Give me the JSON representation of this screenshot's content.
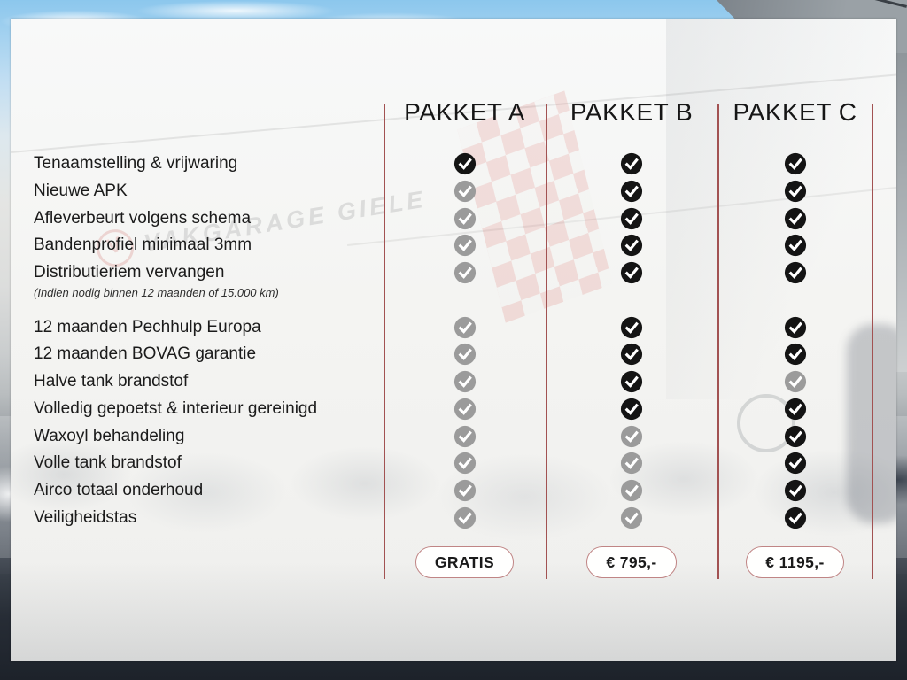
{
  "table": {
    "packages": [
      {
        "name": "PAKKET A",
        "price": "GRATIS"
      },
      {
        "name": "PAKKET B",
        "price": "€ 795,-"
      },
      {
        "name": "PAKKET C",
        "price": "€ 1195,-"
      }
    ],
    "feature_groups": [
      {
        "features": [
          {
            "label": "Tenaamstelling & vrijwaring",
            "included": [
              true,
              true,
              true
            ]
          },
          {
            "label": "Nieuwe APK",
            "included": [
              false,
              true,
              true
            ]
          },
          {
            "label": "Afleverbeurt volgens schema",
            "included": [
              false,
              true,
              true
            ]
          },
          {
            "label": "Bandenprofiel minimaal 3mm",
            "included": [
              false,
              true,
              true
            ]
          },
          {
            "label": "Distributieriem vervangen",
            "note": "(Indien nodig binnen 12 maanden of 15.000 km)",
            "included": [
              false,
              true,
              true
            ]
          }
        ]
      },
      {
        "features": [
          {
            "label": "12 maanden Pechhulp Europa",
            "included": [
              false,
              true,
              true
            ]
          },
          {
            "label": "12 maanden BOVAG garantie",
            "included": [
              false,
              true,
              true
            ]
          },
          {
            "label": "Halve tank brandstof",
            "included": [
              false,
              true,
              false
            ]
          },
          {
            "label": "Volledig gepoetst & interieur gereinigd",
            "included": [
              false,
              true,
              true
            ]
          },
          {
            "label": "Waxoyl behandeling",
            "included": [
              false,
              false,
              true
            ]
          },
          {
            "label": "Volle tank brandstof",
            "included": [
              false,
              false,
              true
            ]
          },
          {
            "label": "Airco totaal onderhoud",
            "included": [
              false,
              false,
              true
            ]
          },
          {
            "label": "Veiligheidstas",
            "included": [
              false,
              false,
              true
            ]
          }
        ]
      }
    ],
    "colors": {
      "check_included": "#141414",
      "check_excluded": "#9b9b9b",
      "divider": "#a25252",
      "pill_border": "#c08585"
    }
  },
  "background": {
    "sign_text": "VAKGARAGE GIELE",
    "sign_logo_letter": "V"
  }
}
